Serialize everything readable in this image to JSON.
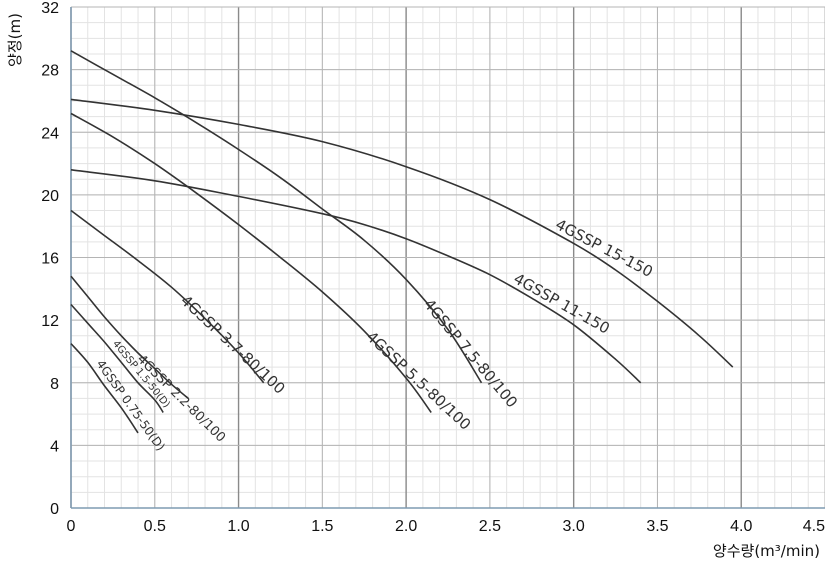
{
  "chart_data": {
    "type": "line",
    "title": "",
    "xlabel": "양수량(m³/min)",
    "ylabel": "양정(m)",
    "xlim": [
      0,
      4.5
    ],
    "ylim": [
      0,
      32
    ],
    "xticks": [
      "0",
      "0.5",
      "1.0",
      "1.5",
      "2.0",
      "2.5",
      "3.0",
      "3.5",
      "4.0",
      "4.5"
    ],
    "xtick_values": [
      0,
      0.5,
      1.0,
      1.5,
      2.0,
      2.5,
      3.0,
      3.5,
      4.0,
      4.5
    ],
    "yticks": [
      "0",
      "4",
      "8",
      "12",
      "16",
      "20",
      "24",
      "28",
      "32"
    ],
    "ytick_values": [
      0,
      4,
      8,
      12,
      16,
      20,
      24,
      28,
      32
    ],
    "grid": true,
    "legend": "none",
    "colors": {
      "curve": "#333333",
      "major_grid": "#b4b4b4",
      "minor_grid": "#e3e3e3",
      "axis": "#7f9bb2"
    },
    "series": [
      {
        "name": "4GSSP 0.75-50(D)",
        "x": [
          0.0,
          0.1,
          0.2,
          0.3,
          0.4
        ],
        "y": [
          10.5,
          9.3,
          7.8,
          6.4,
          4.8
        ]
      },
      {
        "name": "4GSSP 1.5-50(D)",
        "x": [
          0.0,
          0.1,
          0.2,
          0.3,
          0.4,
          0.5,
          0.55
        ],
        "y": [
          13.0,
          11.8,
          10.6,
          9.3,
          8.0,
          6.9,
          6.1
        ]
      },
      {
        "name": "4GSSP 2.2-80/100",
        "x": [
          0.0,
          0.1,
          0.2,
          0.3,
          0.4,
          0.5,
          0.6,
          0.7
        ],
        "y": [
          14.8,
          13.5,
          12.2,
          11.0,
          9.9,
          8.9,
          7.9,
          7.0
        ]
      },
      {
        "name": "4GSSP 3.7-80/100",
        "x": [
          0.0,
          0.2,
          0.4,
          0.6,
          0.8,
          1.0,
          1.15
        ],
        "y": [
          19.0,
          17.4,
          15.8,
          14.1,
          12.1,
          9.9,
          8.0
        ]
      },
      {
        "name": "4GSSP 5.5-80/100",
        "x": [
          0.0,
          0.25,
          0.5,
          0.75,
          1.0,
          1.25,
          1.5,
          1.75,
          2.0,
          2.15
        ],
        "y": [
          25.2,
          23.7,
          22.0,
          20.1,
          18.1,
          16.0,
          13.8,
          11.3,
          8.3,
          6.1
        ]
      },
      {
        "name": "4GSSP 7.5-80/100",
        "x": [
          0.0,
          0.25,
          0.5,
          0.75,
          1.0,
          1.25,
          1.5,
          1.75,
          2.0,
          2.25,
          2.45
        ],
        "y": [
          29.2,
          27.7,
          26.2,
          24.6,
          22.9,
          21.1,
          19.1,
          17.1,
          14.6,
          11.4,
          8.0
        ]
      },
      {
        "name": "4GSSP 11-150",
        "x": [
          0.0,
          0.5,
          1.0,
          1.5,
          1.75,
          2.0,
          2.25,
          2.5,
          2.75,
          3.0,
          3.25,
          3.4
        ],
        "y": [
          21.6,
          20.9,
          19.9,
          18.8,
          18.1,
          17.2,
          16.1,
          14.9,
          13.4,
          11.7,
          9.5,
          8.0
        ]
      },
      {
        "name": "4GSSP 15-150",
        "x": [
          0.0,
          0.5,
          1.0,
          1.5,
          2.0,
          2.5,
          3.0,
          3.25,
          3.5,
          3.75,
          3.95
        ],
        "y": [
          26.1,
          25.4,
          24.5,
          23.4,
          21.8,
          19.7,
          16.9,
          15.2,
          13.2,
          11.0,
          9.0
        ]
      }
    ]
  }
}
